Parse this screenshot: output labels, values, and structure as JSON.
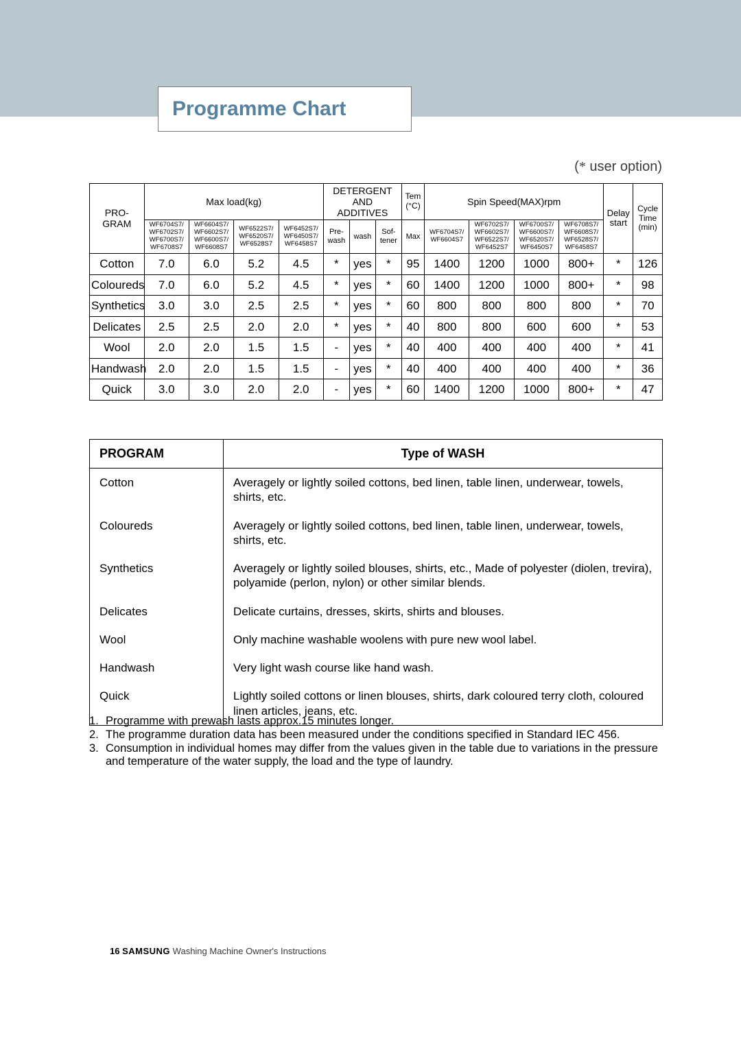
{
  "title": "Programme Chart",
  "user_option_note": "( * user option)",
  "main_table": {
    "program_header": "PRO-\nGRAM",
    "maxload_header": "Max load(kg)",
    "detergent_header": "DETERGENT\nAND\nADDITIVES",
    "temp_header": "Tem\n(°C)",
    "spin_header": "Spin Speed(MAX)rpm",
    "delay_header": "Delay\nstart",
    "cycle_header": "Cycle\nTime\n(min)",
    "maxload_models": [
      "WF6704S7/\nWF6702S7/\nWF6700S7/\nWF6708S7",
      "WF6604S7/\nWF6602S7/\nWF6600S7/\nWF6608S7",
      "WF6522S7/\nWF6520S7/\nWF6528S7",
      "WF6452S7/\nWF6450S7/\nWF6458S7"
    ],
    "detergent_cols": [
      "Pre-\nwash",
      "wash",
      "Sof-\ntener"
    ],
    "temp_col": "Max",
    "spin_models": [
      "WF6704S7/\nWF6604S7",
      "WF6702S7/\nWF6602S7/\nWF6522S7/\nWF6452S7",
      "WF6700S7/\nWF6600S7/\nWF6520S7/\nWF6450S7",
      "WF6708S7/\nWF6608S7/\nWF6528S7/\nWF6458S7"
    ],
    "rows": [
      {
        "name": "Cotton",
        "load": [
          "7.0",
          "6.0",
          "5.2",
          "4.5"
        ],
        "det": [
          "*",
          "yes",
          "*"
        ],
        "temp": "95",
        "spin": [
          "1400",
          "1200",
          "1000",
          "800+"
        ],
        "delay": "*",
        "cycle": "126"
      },
      {
        "name": "Coloureds",
        "load": [
          "7.0",
          "6.0",
          "5.2",
          "4.5"
        ],
        "det": [
          "*",
          "yes",
          "*"
        ],
        "temp": "60",
        "spin": [
          "1400",
          "1200",
          "1000",
          "800+"
        ],
        "delay": "*",
        "cycle": "98"
      },
      {
        "name": "Synthetics",
        "load": [
          "3.0",
          "3.0",
          "2.5",
          "2.5"
        ],
        "det": [
          "*",
          "yes",
          "*"
        ],
        "temp": "60",
        "spin": [
          "800",
          "800",
          "800",
          "800"
        ],
        "delay": "*",
        "cycle": "70"
      },
      {
        "name": "Delicates",
        "load": [
          "2.5",
          "2.5",
          "2.0",
          "2.0"
        ],
        "det": [
          "*",
          "yes",
          "*"
        ],
        "temp": "40",
        "spin": [
          "800",
          "800",
          "600",
          "600"
        ],
        "delay": "*",
        "cycle": "53"
      },
      {
        "name": "Wool",
        "load": [
          "2.0",
          "2.0",
          "1.5",
          "1.5"
        ],
        "det": [
          "-",
          "yes",
          "*"
        ],
        "temp": "40",
        "spin": [
          "400",
          "400",
          "400",
          "400"
        ],
        "delay": "*",
        "cycle": "41"
      },
      {
        "name": "Handwash",
        "load": [
          "2.0",
          "2.0",
          "1.5",
          "1.5"
        ],
        "det": [
          "-",
          "yes",
          "*"
        ],
        "temp": "40",
        "spin": [
          "400",
          "400",
          "400",
          "400"
        ],
        "delay": "*",
        "cycle": "36"
      },
      {
        "name": "Quick",
        "load": [
          "3.0",
          "3.0",
          "2.0",
          "2.0"
        ],
        "det": [
          "-",
          "yes",
          "*"
        ],
        "temp": "60",
        "spin": [
          "1400",
          "1200",
          "1000",
          "800+"
        ],
        "delay": "*",
        "cycle": "47"
      }
    ]
  },
  "desc_table": {
    "headers": [
      "PROGRAM",
      "Type of WASH"
    ],
    "rows": [
      {
        "program": "Cotton",
        "desc": "Averagely or lightly soiled cottons, bed linen, table linen, underwear, towels, shirts, etc."
      },
      {
        "program": "Coloureds",
        "desc": "Averagely or lightly soiled cottons, bed linen, table linen, underwear, towels, shirts, etc."
      },
      {
        "program": "Synthetics",
        "desc": "Averagely or lightly soiled blouses, shirts, etc., Made of polyester (diolen, trevira), polyamide (perlon, nylon) or other similar blends."
      },
      {
        "program": "Delicates",
        "desc": "Delicate curtains, dresses, skirts, shirts and blouses."
      },
      {
        "program": "Wool",
        "desc": "Only machine washable woolens with pure new wool label."
      },
      {
        "program": "Handwash",
        "desc": "Very light wash course like hand wash."
      },
      {
        "program": "Quick",
        "desc": "Lightly soiled cottons or linen blouses, shirts, dark coloured terry cloth, coloured linen articles, jeans, etc."
      }
    ]
  },
  "notes": [
    "Programme with prewash lasts approx.15 minutes longer.",
    "The programme duration data has been measured under the conditions specified in Standard IEC 456.",
    "Consumption in individual homes may differ from the values given in the table due to variations in the pressure and temperature of the water supply, the load and the type of laundry."
  ],
  "footer": {
    "page": "16",
    "brand": "SAMSUNG",
    "text": "Washing Machine Owner's Instructions"
  },
  "colors": {
    "banner": "#b9c7cf",
    "title": "#5582a0",
    "text": "#000000",
    "background": "#ffffff"
  }
}
